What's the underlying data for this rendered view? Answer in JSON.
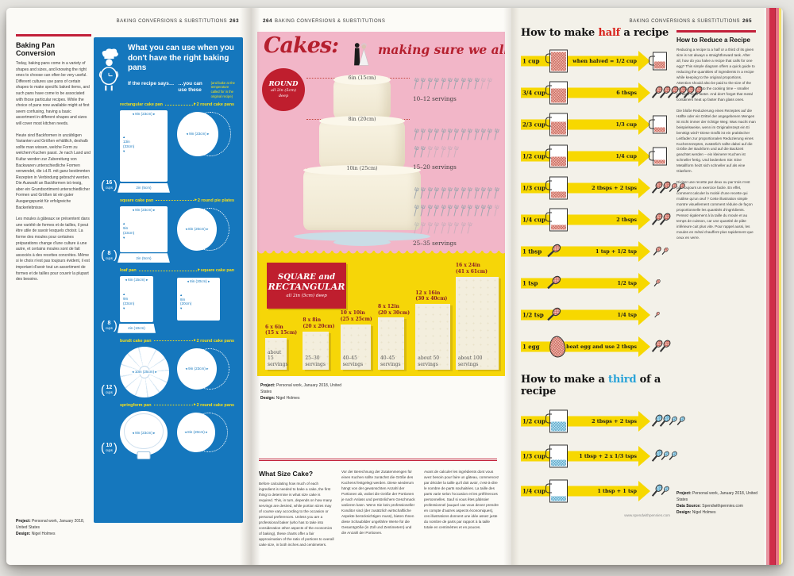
{
  "headers": {
    "left": {
      "title": "BAKING CONVERSIONS & SUBSTITUTIONS",
      "page": "263"
    },
    "middle": {
      "page": "264",
      "title": "BAKING CONVERSIONS & SUBSTITUTIONS"
    },
    "right": {
      "title": "BAKING CONVERSIONS & SUBSTITUTIONS",
      "page": "265"
    }
  },
  "colors": {
    "crimson": "#c2203a",
    "panel_blue": "#1577bd",
    "panel_yellow_text": "#f7e017",
    "pink": "#f2b6c8",
    "yellow": "#f6d608",
    "half_red": "#d8231c",
    "third_blue": "#29a3d8"
  },
  "left_page": {
    "article_title": "Baking Pan Conversion",
    "paragraphs": {
      "en": "Today, baking pans come in a variety of shapes and sizes, and knowing the right ones to choose can often be very useful. Different cultures use pans of certain shapes to make specific baked items, and such pans have come to be associated with those particular recipes. While the choice of pans now available might at first seem confusing, having a basic assortment in different shapes and sizes will cover most kitchen needs.",
      "de": "Heute sind Backformen in unzähligen Varianten und Größen erhältlich, deshalb sollte man wissen, welche Form zu welchem Kuchen passt. Je nach Land und Kultur werden zur Zubereitung von Backwaren unterschiedliche Formen verwendet, die i.d.R. mit ganz bestimmten Rezepten in Verbindung gebracht werden. Die Auswahl an Backformen ist riesig, aber ein Grundsortiment unterschiedlicher Formen und Größen ist ein guter Ausgangspunkt für erfolgreiche Backerlebnisse.",
      "fr": "Les moules à gâteaux se présentent dans une variété de formes et de tailles, il peut être utile de savoir lesquels choisir. La forme des moules pour certaines préparations change d'une culture à une autre, et certains moules sont de fait associés à des recettes concrètes. Même si le choix n'est pas toujours évident, il est important d'avoir tout un assortiment de formes et de tailles pour couvrir la plupart des besoins."
    },
    "credits": [
      {
        "label": "Project:",
        "text": " Personal work, January 2018, United States"
      },
      {
        "label": "Design:",
        "text": " Nigel Holmes"
      }
    ],
    "panel": {
      "title": "What you can use when you don't have the right baking pans",
      "col_left_label": "If the recipe says…",
      "col_right_label": "…you can use these",
      "note": "(and bake at the temperature called for in the original recipe)",
      "cups_word": "cups",
      "rows": [
        {
          "from_label": "rectangular cake pan",
          "to_label": "2 round cake pans",
          "from_type": "rect",
          "w": "9in (23cm)",
          "h": "13in (33cm)",
          "depth": "2in (5cm)",
          "cups": "16",
          "to_type": "round2",
          "to_w": "9in (23cm)"
        },
        {
          "from_label": "square cake pan",
          "to_label": "2 round pie plates",
          "from_type": "rect",
          "w": "9in (23cm)",
          "h": "9in (23cm)",
          "depth": "2in (5cm)",
          "cups": "8",
          "to_type": "round2",
          "to_w": "8in (20cm)"
        },
        {
          "from_label": "loaf pan",
          "to_label": "square cake pan",
          "from_type": "rect",
          "w": "6in (15cm)",
          "h": "9in (23cm)",
          "depth": "4in (10cm)",
          "cups": "8",
          "to_type": "square",
          "to_w": "8in (20cm)",
          "to_h": "8in (20cm)"
        },
        {
          "from_label": "bundt cake pan",
          "to_label": "2 round cake pans",
          "from_type": "bundt",
          "w": "10in (25cm)",
          "cups": "12",
          "to_type": "round2",
          "to_w": "9in (23cm)"
        },
        {
          "from_label": "springform pan",
          "to_label": "2 round cake pans",
          "from_type": "spring",
          "w": "9in (23cm)",
          "cups": "10",
          "to_type": "round2",
          "to_w": "8in (20cm)"
        }
      ]
    }
  },
  "middle_page": {
    "cakes_title": "Cakes:",
    "cakes_subtitle": "making sure we all get a piece",
    "round_badge": {
      "line1": "ROUND",
      "line2": "all 2in (5cm)",
      "line3": "deep"
    },
    "chart_data": {
      "type": "table",
      "title": "Cakes: making sure we all get a piece",
      "round_tiers": [
        {
          "size": "6in (15cm)",
          "servings": "10–12 servings",
          "forks_dark": 10,
          "forks_light": 2
        },
        {
          "size": "8in (20cm)",
          "servings": "15–20 servings",
          "forks_dark": 15,
          "forks_light": 5
        },
        {
          "size": "10in (25cm)",
          "servings": "25–35 servings",
          "forks_dark": 25,
          "forks_light": 10
        }
      ],
      "square_sizes": [
        {
          "inches": "6 x 6in",
          "cm": "(15 x 15cm)",
          "servings": "about 15 servings",
          "dims": [
            6,
            6
          ]
        },
        {
          "inches": "8 x 8in",
          "cm": "(20 x 20cm)",
          "servings": "25–30 servings",
          "dims": [
            8,
            8
          ]
        },
        {
          "inches": "10 x 10in",
          "cm": "(25 x 25cm)",
          "servings": "40–45 servings",
          "dims": [
            10,
            10
          ]
        },
        {
          "inches": "8 x 12in",
          "cm": "(20 x 30cm)",
          "servings": "40–45 servings",
          "dims": [
            8,
            12
          ]
        },
        {
          "inches": "12 x 16in",
          "cm": "(30 x 40cm)",
          "servings": "about 50 servings",
          "dims": [
            12,
            16
          ]
        },
        {
          "inches": "16 x 24in",
          "cm": "(41 x 61cm)",
          "servings": "about 100 servings",
          "dims": [
            16,
            24
          ]
        }
      ]
    },
    "square_badge": {
      "line1": "SQUARE and",
      "line2": "RECTANGULAR",
      "line3": "all 2in (5cm) deep"
    },
    "credits": [
      {
        "label": "Project:",
        "text": " Personal work, January 2018, United States"
      },
      {
        "label": "Design:",
        "text": " Nigel Holmes"
      }
    ],
    "what_size": {
      "title": "What Size Cake?",
      "en": "Before calculating how much of each ingredient is needed to bake a cake, the first thing to determine is what size cake is required. This, in turn, depends on how many servings are desired, while portion sizes may of course vary according to the occasion or personal preferences. Unless you are a professional baker (who has to take into consideration other aspects of the economics of baking), these charts offer a fair approximation of the ratio of portions to overall cake size, in both inches and centimeters.",
      "de": "Vor der Berechnung der Zutatenmengen für einen Kuchen sollte zunächst die Größe des Kuchens festgelegt werden. Diese wiederum hängt von der gewünschten Anzahl der Portionen ab, wobei die Größe der Portionen je nach Anlass und persönlichem Geschmack variieren kann. Wenn Sie kein professioneller Konditor sind (der zusätzlich wirtschaftliche Aspekte berücksichtigen muss), bieten Ihnen diese Schaubilder ungefähre Werte für die Gesamtgröße (in Zoll und Zentimetern) und die Anzahl der Portionen.",
      "fr": "Avant de calculer les ingrédients dont vous avez besoin pour faire un gâteau, commencez par décider la taille qu'il doit avoir, c'est-à-dire le nombre de parts souhaitées. La taille des parts varie selon l'occasion et les préférences personnelles. Sauf si vous êtes pâtissier professionnel (auquel cas vous devez prendre en compte d'autres aspects économiques), ces illustrations donnent une idée assez juste du nombre de parts par rapport à la taille totale en centimètres et en pouces."
    }
  },
  "right_page": {
    "half_title": {
      "pre": "How to make ",
      "em": "half",
      "post": " a recipe"
    },
    "half_rows": [
      {
        "from": "1 cup",
        "icon": "cup",
        "level": 1.0,
        "label": "when halved = 1/2 cup",
        "result": {
          "type": "cup",
          "level": 0.5
        }
      },
      {
        "from": "3/4 cup",
        "icon": "cup",
        "level": 0.75,
        "label": "6 tbsps",
        "result": {
          "type": "spoons",
          "sizes": [
            "tbsp",
            "tbsp",
            "tbsp",
            "tbsp",
            "tbsp",
            "tbsp"
          ]
        }
      },
      {
        "from": "2/3 cup",
        "icon": "cup",
        "level": 0.66,
        "label": "1/3 cup",
        "result": {
          "type": "cup",
          "level": 0.33
        }
      },
      {
        "from": "1/2 cup",
        "icon": "cup",
        "level": 0.5,
        "label": "1/4 cup",
        "result": {
          "type": "cup",
          "level": 0.25
        }
      },
      {
        "from": "1/3 cup",
        "icon": "cup",
        "level": 0.33,
        "label": "2 tbsps + 2 tsps",
        "result": {
          "type": "spoons",
          "sizes": [
            "tbsp",
            "tbsp",
            "tsp",
            "tsp"
          ]
        }
      },
      {
        "from": "1/4 cup",
        "icon": "cup",
        "level": 0.25,
        "label": "2 tbsps",
        "result": {
          "type": "spoons",
          "sizes": [
            "tbsp",
            "tbsp"
          ]
        }
      },
      {
        "from": "1 tbsp",
        "icon": "spoon-tbsp",
        "label": "1 tsp + 1/2 tsp",
        "result": {
          "type": "spoons",
          "sizes": [
            "tsp",
            "half"
          ]
        }
      },
      {
        "from": "1 tsp",
        "icon": "spoon-tsp",
        "label": "1/2 tsp",
        "result": {
          "type": "spoons",
          "sizes": [
            "half"
          ]
        }
      },
      {
        "from": "1/2 tsp",
        "icon": "spoon-half",
        "label": "1/4 tsp",
        "result": {
          "type": "spoons",
          "sizes": [
            "quarter"
          ]
        }
      },
      {
        "from": "1 egg",
        "icon": "egg",
        "label": "beat egg and use 2 tbsps",
        "result": {
          "type": "spoons",
          "sizes": [
            "tbsp",
            "tbsp"
          ]
        }
      }
    ],
    "third_title": {
      "pre": "How to make a ",
      "em": "third",
      "post": " of a recipe"
    },
    "third_rows": [
      {
        "from": "1/2 cup",
        "icon": "cup",
        "level": 0.5,
        "label": "2 tbsps + 2 tsps",
        "result": {
          "type": "spoons",
          "sizes": [
            "tbsp",
            "tbsp",
            "tsp",
            "tsp"
          ]
        }
      },
      {
        "from": "1/3 cup",
        "icon": "cup",
        "level": 0.33,
        "label": "1 tbsp + 2 x 1/3 tsps",
        "result": {
          "type": "spoons",
          "sizes": [
            "tbsp",
            "tsp",
            "tsp"
          ]
        }
      },
      {
        "from": "1/4 cup",
        "icon": "cup",
        "level": 0.25,
        "label": "1 tbsp + 1 tsp",
        "result": {
          "type": "spoons",
          "sizes": [
            "tbsp",
            "tsp"
          ]
        }
      }
    ],
    "source": "www.spendwithpennies.com",
    "reduce": {
      "title": "How to Reduce a Recipe",
      "en": "Reducing a recipe to a half or a third of its given size is not always a straightforward task. After all, how do you halve a recipe that calls for one egg? This simple diagram offers a quick guide to reducing the quantities of ingredients in a recipe while keeping to the original proportions. Attention should also be paid to the size of the baking tray and to the cooking time – smaller portions cook faster. And don't forget that metal containers heat up faster than glass ones.",
      "de": "Die bloße Reduzierung eines Rezeptes auf die Hälfte oder ein Drittel der angegebenen Mengen ist nicht immer der richtige Weg: Was macht man beispielsweise, wenn im Originalrezept ein Ei benötigt wird? Diese Grafik ist ein praktischer Leitfaden zur proportionalen Reduzierung eines Kuchenrezeptes, zusätzlich sollte dabei auf die Größe der Backform und auf die Backzeit geachtet werden – ein kleinerer Kuchen ist schneller fertig. Und bedenken Sie: Eine Metallform heizt sich schneller auf als eine Glasform.",
      "fr": "Diviser une recette par deux ou par trois n'est pas toujours un exercice facile. En effet, comment calculer la moitié d'une recette qui n'utilise qu'un œuf ? Cette illustration simple montre visuellement comment réduire de façon proportionnelle les quantités d'ingrédients. Pensez également à la taille du moule et au temps de cuisson, car une quantité de pâte inférieure cuit plus vite. Pour rappel aussi, les moules en métal chauffent plus rapidement que ceux en verre."
    },
    "credits": [
      {
        "label": "Project:",
        "text": " Personal work, January 2018, United States"
      },
      {
        "label": "Data Source:",
        "text": " Spendwithpennies.com"
      },
      {
        "label": "Design:",
        "text": " Nigel Holmes"
      }
    ]
  }
}
